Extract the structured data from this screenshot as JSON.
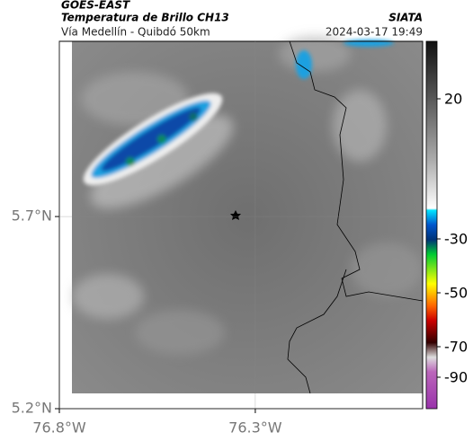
{
  "header": {
    "source": "GOES-EAST",
    "title": "Temperatura de Brillo CH13",
    "subtitle": "Vía Medellín - Quibdó 50km",
    "brand": "SIATA",
    "timestamp": "2024-03-17 19:49"
  },
  "map": {
    "latlim": [
      5.2,
      6.156
    ],
    "lonlim": [
      -76.8,
      -75.873
    ],
    "lat_ticks": [
      {
        "value": 5.7,
        "label": "5.7°N"
      },
      {
        "value": 5.2,
        "label": "5.2°N"
      }
    ],
    "lon_ticks": [
      {
        "value": -76.8,
        "label": "76.8°W"
      },
      {
        "value": -76.3,
        "label": "76.3°W"
      }
    ]
  },
  "colorbar": {
    "ticks": [
      20,
      -30,
      -50,
      -70,
      -90
    ]
  }
}
